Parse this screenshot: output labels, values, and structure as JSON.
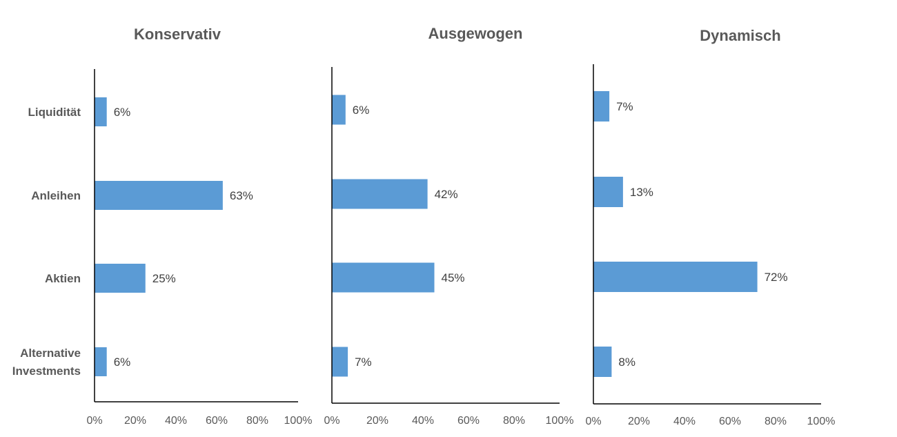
{
  "chart_data": [
    {
      "type": "bar",
      "orientation": "horizontal",
      "title": "Konservativ",
      "categories": [
        "Liquidität",
        "Anleihen",
        "Aktien",
        "Alternative Investments"
      ],
      "values": [
        6,
        63,
        25,
        6
      ],
      "data_labels": [
        "6%",
        "63%",
        "25%",
        "6%"
      ],
      "xlim": [
        0,
        100
      ],
      "x_ticks": [
        "0%",
        "20%",
        "40%",
        "60%",
        "80%",
        "100%"
      ],
      "color": "#5B9BD5",
      "grid": false
    },
    {
      "type": "bar",
      "orientation": "horizontal",
      "title": "Ausgewogen",
      "categories": [
        "Liquidität",
        "Anleihen",
        "Aktien",
        "Alternative Investments"
      ],
      "values": [
        6,
        42,
        45,
        7
      ],
      "data_labels": [
        "6%",
        "42%",
        "45%",
        "7%"
      ],
      "xlim": [
        0,
        100
      ],
      "x_ticks": [
        "0%",
        "20%",
        "40%",
        "60%",
        "80%",
        "100%"
      ],
      "color": "#5B9BD5",
      "grid": false
    },
    {
      "type": "bar",
      "orientation": "horizontal",
      "title": "Dynamisch",
      "categories": [
        "Liquidität",
        "Anleihen",
        "Aktien",
        "Alternative Investments"
      ],
      "values": [
        7,
        13,
        72,
        8
      ],
      "data_labels": [
        "7%",
        "13%",
        "72%",
        "8%"
      ],
      "xlim": [
        0,
        100
      ],
      "x_ticks": [
        "0%",
        "20%",
        "40%",
        "60%",
        "80%",
        "100%"
      ],
      "color": "#5B9BD5",
      "grid": false
    }
  ],
  "category_labels": [
    {
      "lines": [
        "Liquidität"
      ]
    },
    {
      "lines": [
        "Anleihen"
      ]
    },
    {
      "lines": [
        "Aktien"
      ]
    },
    {
      "lines": [
        "Alternative",
        "Investments"
      ]
    }
  ]
}
